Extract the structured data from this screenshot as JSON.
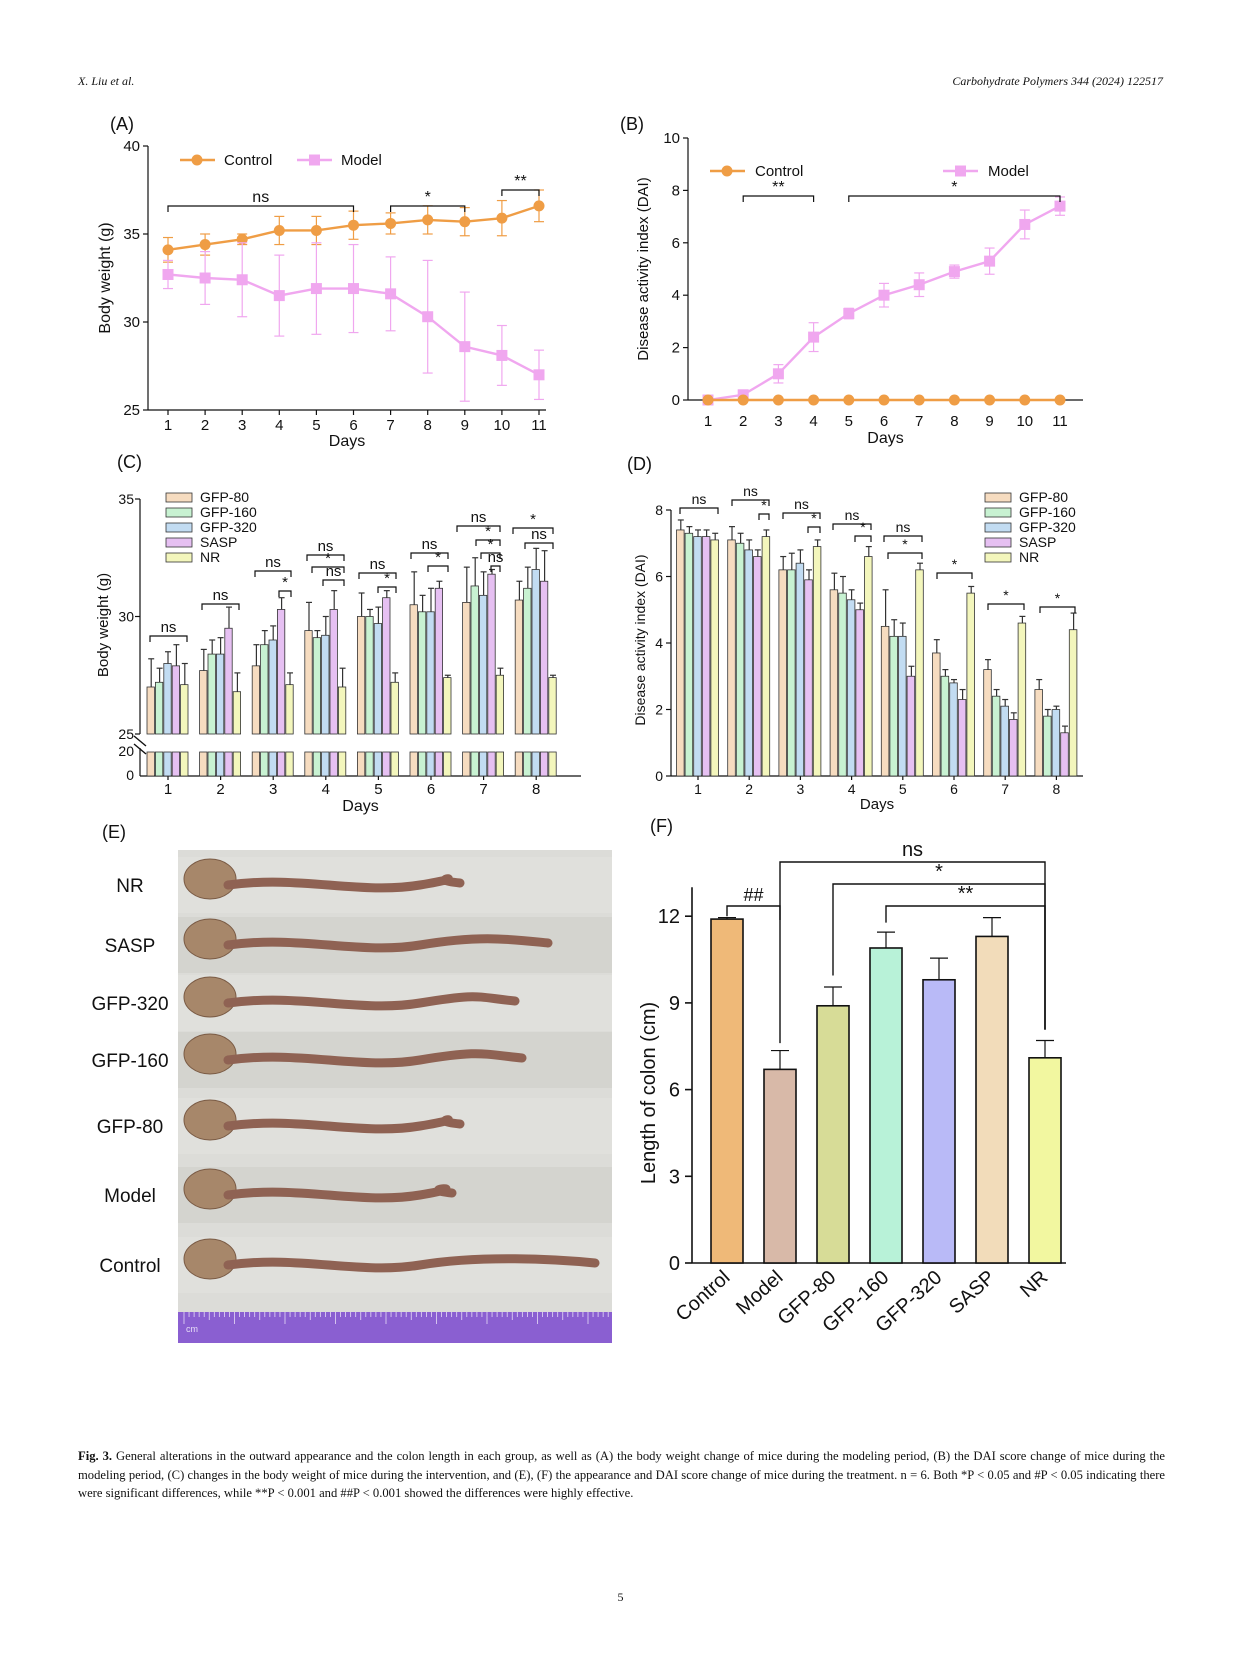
{
  "header": {
    "left": "X. Liu et al.",
    "right": "Carbohydrate Polymers 344 (2024) 122517"
  },
  "colors": {
    "control": "#ef9d45",
    "model": "#f0a7ef",
    "gfp80": "#f6dcc0",
    "gfp160": "#c8f2d2",
    "gfp320": "#c2dcf2",
    "sasp": "#e6c0f2",
    "nr": "#f3f6bc",
    "f_control": "#efb978",
    "f_model": "#d8b9a8",
    "f_gfp80": "#d7dc97",
    "f_gfp160": "#b8f2d8",
    "f_gfp320": "#b9baf7",
    "f_sasp": "#f2dcba",
    "f_nr": "#f2f7a0"
  },
  "panels": {
    "A": {
      "label": "(A)",
      "chart_data": {
        "type": "line",
        "xlabel": "Days",
        "ylabel": "Body weight (g)",
        "x": [
          1,
          2,
          3,
          4,
          5,
          6,
          7,
          8,
          9,
          10,
          11
        ],
        "ylim": [
          25,
          40
        ],
        "yticks": [
          25,
          30,
          35,
          40
        ],
        "series": [
          {
            "name": "Control",
            "values": [
              34.1,
              34.4,
              34.7,
              35.2,
              35.2,
              35.5,
              35.6,
              35.8,
              35.7,
              35.9,
              36.6
            ],
            "errors": [
              0.7,
              0.6,
              0.3,
              0.8,
              0.8,
              0.8,
              0.6,
              0.8,
              0.8,
              1.0,
              0.9
            ]
          },
          {
            "name": "Model",
            "values": [
              32.7,
              32.5,
              32.4,
              31.5,
              31.9,
              31.9,
              31.6,
              30.3,
              28.6,
              28.1,
              27.0
            ],
            "errors": [
              0.8,
              1.5,
              2.1,
              2.3,
              2.6,
              2.5,
              2.1,
              3.2,
              3.1,
              1.7,
              1.4
            ]
          }
        ],
        "annotations": [
          {
            "text": "ns",
            "from": 1,
            "to": 6
          },
          {
            "text": "*",
            "from": 7,
            "to": 9
          },
          {
            "text": "**",
            "from": 10,
            "to": 11
          }
        ]
      }
    },
    "B": {
      "label": "(B)",
      "chart_data": {
        "type": "line",
        "xlabel": "Days",
        "ylabel": "Disease activity index (DAI)",
        "x": [
          1,
          2,
          3,
          4,
          5,
          6,
          7,
          8,
          9,
          10,
          11
        ],
        "ylim": [
          0,
          10
        ],
        "yticks": [
          0,
          2,
          4,
          6,
          8,
          10
        ],
        "series": [
          {
            "name": "Control",
            "values": [
              0,
              0,
              0,
              0,
              0,
              0,
              0,
              0,
              0,
              0,
              0
            ],
            "errors": [
              0,
              0,
              0,
              0,
              0,
              0,
              0,
              0,
              0,
              0,
              0
            ]
          },
          {
            "name": "Model",
            "values": [
              0,
              0.2,
              1.0,
              2.4,
              3.3,
              4.0,
              4.4,
              4.9,
              5.3,
              6.7,
              7.4
            ],
            "errors": [
              0,
              0.1,
              0.35,
              0.55,
              0.2,
              0.45,
              0.45,
              0.25,
              0.5,
              0.55,
              0.35
            ]
          }
        ],
        "annotations": [
          {
            "text": "**",
            "from": 2,
            "to": 4
          },
          {
            "text": "*",
            "from": 5,
            "to": 11
          }
        ]
      }
    },
    "C": {
      "label": "(C)",
      "chart_data": {
        "type": "bar",
        "xlabel": "Days",
        "ylabel": "Body weight (g)",
        "categories": [
          "1",
          "2",
          "3",
          "4",
          "5",
          "6",
          "7",
          "8"
        ],
        "yticks_upper": [
          25,
          30,
          35
        ],
        "yticks_lower": [
          0,
          20
        ],
        "series": [
          {
            "name": "GFP-80",
            "values": [
              27.0,
              27.7,
              27.9,
              29.4,
              30.0,
              30.5,
              30.6,
              30.7
            ],
            "errors": [
              1.2,
              0.9,
              0.9,
              1.2,
              1.0,
              1.4,
              1.5,
              0.8
            ]
          },
          {
            "name": "GFP-160",
            "values": [
              27.2,
              28.4,
              28.8,
              29.1,
              30.0,
              30.2,
              31.3,
              31.2
            ],
            "errors": [
              0.6,
              0.6,
              0.6,
              0.3,
              0.3,
              0.7,
              1.2,
              0.9
            ]
          },
          {
            "name": "GFP-320",
            "values": [
              28.0,
              28.4,
              29.0,
              29.2,
              29.7,
              30.2,
              30.9,
              32.0
            ],
            "errors": [
              0.5,
              0.7,
              0.6,
              0.8,
              0.7,
              1.0,
              1.0,
              0.9
            ]
          },
          {
            "name": "SASP",
            "values": [
              27.9,
              29.5,
              30.3,
              30.3,
              30.8,
              31.2,
              31.8,
              31.5
            ],
            "errors": [
              0.9,
              0.9,
              0.5,
              0.8,
              0.3,
              0.3,
              0.2,
              1.3
            ]
          },
          {
            "name": "NR",
            "values": [
              27.1,
              26.8,
              27.1,
              27.0,
              27.2,
              27.4,
              27.5,
              27.4
            ],
            "errors": [
              0.9,
              0.8,
              0.5,
              0.8,
              0.4,
              0.1,
              0.3,
              0.1
            ]
          }
        ],
        "annotations": [
          "ns",
          "ns",
          "ns",
          "*",
          "ns",
          "*",
          "ns",
          "ns",
          "*",
          "ns",
          "*",
          "ns",
          "*",
          "*",
          "ns",
          "*",
          "ns",
          "*",
          "ns",
          "*"
        ]
      }
    },
    "D": {
      "label": "(D)",
      "chart_data": {
        "type": "bar",
        "xlabel": "Days",
        "ylabel": "Disease activity index (DAI)",
        "categories": [
          "1",
          "2",
          "3",
          "4",
          "5",
          "6",
          "7",
          "8"
        ],
        "ylim": [
          0,
          8
        ],
        "yticks": [
          0,
          2,
          4,
          6,
          8
        ],
        "series": [
          {
            "name": "GFP-80",
            "values": [
              7.4,
              7.1,
              6.2,
              5.6,
              4.5,
              3.7,
              3.2,
              2.6
            ],
            "errors": [
              0.3,
              0.4,
              0.4,
              0.5,
              1.1,
              0.4,
              0.3,
              0.3
            ]
          },
          {
            "name": "GFP-160",
            "values": [
              7.3,
              7.0,
              6.2,
              5.5,
              4.2,
              3.0,
              2.4,
              1.8
            ],
            "errors": [
              0.2,
              0.3,
              0.5,
              0.5,
              0.5,
              0.2,
              0.2,
              0.2
            ]
          },
          {
            "name": "GFP-320",
            "values": [
              7.2,
              6.8,
              6.4,
              5.3,
              4.2,
              2.8,
              2.1,
              2.0
            ],
            "errors": [
              0.2,
              0.3,
              0.4,
              0.3,
              0.4,
              0.1,
              0.2,
              0.1
            ]
          },
          {
            "name": "SASP",
            "values": [
              7.2,
              6.6,
              5.9,
              5.0,
              3.0,
              2.3,
              1.7,
              1.3
            ],
            "errors": [
              0.2,
              0.2,
              0.3,
              0.2,
              0.3,
              0.3,
              0.2,
              0.2
            ]
          },
          {
            "name": "NR",
            "values": [
              7.1,
              7.2,
              6.9,
              6.6,
              6.2,
              5.5,
              4.6,
              4.4
            ],
            "errors": [
              0.2,
              0.2,
              0.2,
              0.3,
              0.2,
              0.2,
              0.2,
              0.5
            ]
          }
        ],
        "annotations": [
          "ns",
          "ns",
          "*",
          "ns",
          "*",
          "ns",
          "*",
          "ns",
          "*",
          "*",
          "*",
          "*"
        ]
      }
    },
    "E": {
      "label": "(E)",
      "rows": [
        "NR",
        "SASP",
        "GFP-320",
        "GFP-160",
        "GFP-80",
        "Model",
        "Control"
      ],
      "ruler_label": "cm"
    },
    "F": {
      "label": "(F)",
      "chart_data": {
        "type": "bar",
        "ylabel": "Length of colon (cm)",
        "categories": [
          "Control",
          "Model",
          "GFP-80",
          "GFP-160",
          "GFP-320",
          "SASP",
          "NR"
        ],
        "values": [
          11.9,
          6.7,
          8.9,
          10.9,
          9.8,
          11.3,
          7.1
        ],
        "errors": [
          0.05,
          0.65,
          0.65,
          0.55,
          0.75,
          0.65,
          0.6
        ],
        "ylim": [
          0,
          13
        ],
        "yticks": [
          0,
          3,
          6,
          9,
          12
        ],
        "annotations": [
          {
            "text": "##",
            "from": "Control",
            "to": "Model"
          },
          {
            "text": "ns",
            "from": "Model",
            "to": "NR"
          },
          {
            "text": "*",
            "from": "GFP-80",
            "to": "NR"
          },
          {
            "text": "**",
            "from": "GFP-160",
            "to": "NR"
          }
        ]
      }
    }
  },
  "caption": {
    "fig_label": "Fig. 3.",
    "text": "General alterations in the outward appearance and the colon length in each group, as well as (A) the body weight change of mice during the modeling period, (B) the DAI score change of mice during the modeling period, (C) changes in the body weight of mice during the intervention, and (E), (F) the appearance and DAI score change of mice during the treatment. n = 6. Both *P < 0.05 and #P < 0.05 indicating there were significant differences, while **P < 0.001 and ##P < 0.001 showed the differences were highly effective."
  },
  "page_number": "5"
}
